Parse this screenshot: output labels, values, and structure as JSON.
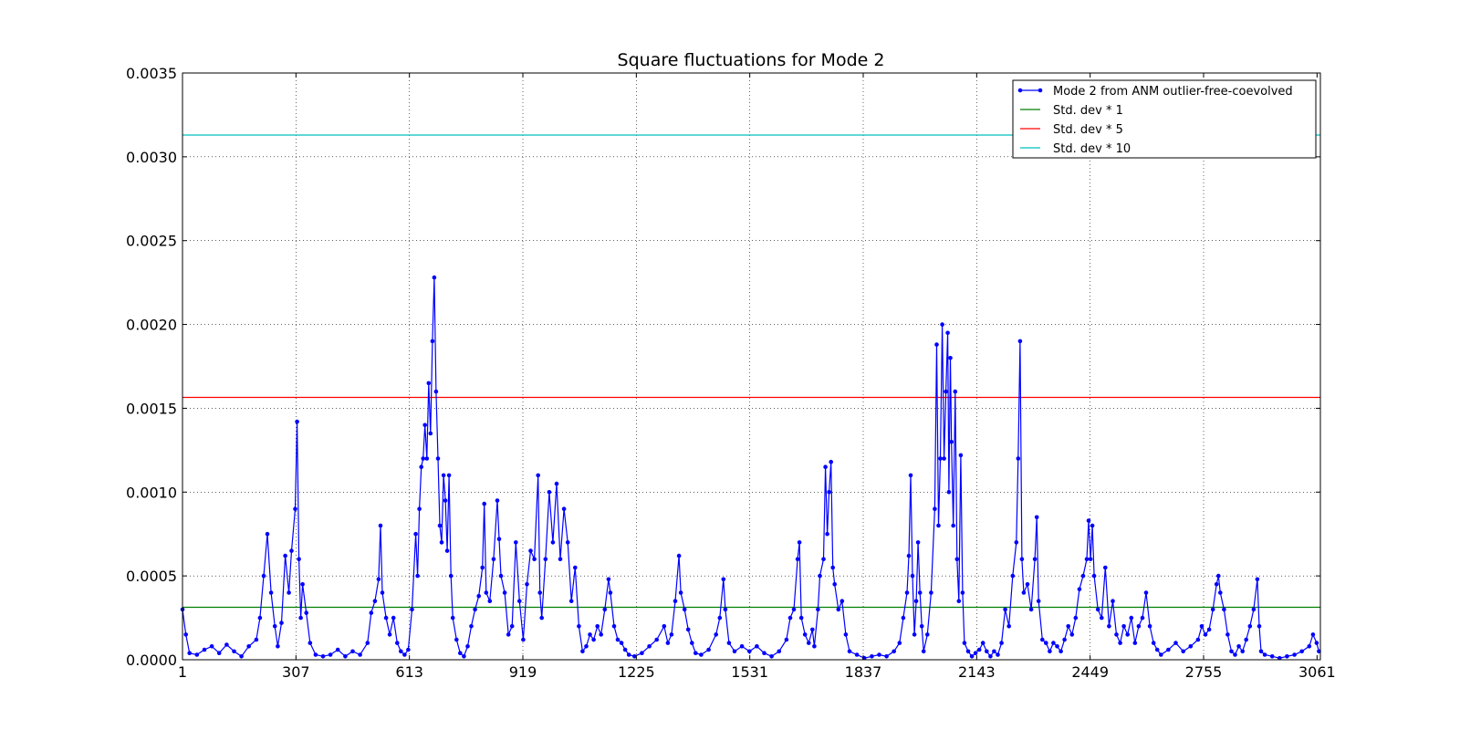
{
  "chart_data": {
    "type": "line",
    "title": "Square fluctuations for Mode 2",
    "xlabel": "",
    "ylabel": "",
    "xlim": [
      1,
      3070
    ],
    "ylim": [
      0,
      0.0035
    ],
    "x_ticks": [
      "1",
      "307",
      "613",
      "919",
      "1225",
      "1531",
      "1837",
      "2143",
      "2449",
      "2755",
      "3061"
    ],
    "y_ticks": [
      "0.0000",
      "0.0005",
      "0.0010",
      "0.0015",
      "0.0020",
      "0.0025",
      "0.0030",
      "0.0035"
    ],
    "grid": true,
    "legend_position": "top-right",
    "series": [
      {
        "name": "Mode 2 from ANM outlier-free-coevolved",
        "color": "#0000ff",
        "marker": "dot",
        "points": [
          [
            1,
            0.0003
          ],
          [
            10,
            0.00015
          ],
          [
            20,
            4e-05
          ],
          [
            40,
            3e-05
          ],
          [
            60,
            6e-05
          ],
          [
            80,
            8e-05
          ],
          [
            100,
            4e-05
          ],
          [
            120,
            9e-05
          ],
          [
            140,
            5e-05
          ],
          [
            160,
            2e-05
          ],
          [
            180,
            8e-05
          ],
          [
            200,
            0.00012
          ],
          [
            210,
            0.00025
          ],
          [
            220,
            0.0005
          ],
          [
            230,
            0.00075
          ],
          [
            240,
            0.0004
          ],
          [
            250,
            0.0002
          ],
          [
            258,
            8e-05
          ],
          [
            268,
            0.00022
          ],
          [
            278,
            0.00062
          ],
          [
            288,
            0.0004
          ],
          [
            295,
            0.00065
          ],
          [
            305,
            0.0009
          ],
          [
            310,
            0.00142
          ],
          [
            315,
            0.0006
          ],
          [
            320,
            0.00025
          ],
          [
            325,
            0.00045
          ],
          [
            335,
            0.00028
          ],
          [
            345,
            0.0001
          ],
          [
            360,
            3e-05
          ],
          [
            380,
            2e-05
          ],
          [
            400,
            3e-05
          ],
          [
            420,
            6e-05
          ],
          [
            440,
            2e-05
          ],
          [
            460,
            5e-05
          ],
          [
            480,
            3e-05
          ],
          [
            500,
            0.0001
          ],
          [
            510,
            0.00028
          ],
          [
            520,
            0.00035
          ],
          [
            530,
            0.00048
          ],
          [
            535,
            0.0008
          ],
          [
            540,
            0.0004
          ],
          [
            550,
            0.00025
          ],
          [
            560,
            0.00015
          ],
          [
            570,
            0.00025
          ],
          [
            580,
            0.0001
          ],
          [
            590,
            5e-05
          ],
          [
            600,
            3e-05
          ],
          [
            610,
            6e-05
          ],
          [
            620,
            0.0003
          ],
          [
            630,
            0.00075
          ],
          [
            635,
            0.0005
          ],
          [
            640,
            0.0009
          ],
          [
            645,
            0.00115
          ],
          [
            650,
            0.0012
          ],
          [
            655,
            0.0014
          ],
          [
            660,
            0.0012
          ],
          [
            665,
            0.00165
          ],
          [
            670,
            0.00135
          ],
          [
            675,
            0.0019
          ],
          [
            680,
            0.00228
          ],
          [
            685,
            0.0016
          ],
          [
            690,
            0.0012
          ],
          [
            695,
            0.0008
          ],
          [
            700,
            0.0007
          ],
          [
            705,
            0.0011
          ],
          [
            710,
            0.00095
          ],
          [
            715,
            0.00065
          ],
          [
            720,
            0.0011
          ],
          [
            725,
            0.0005
          ],
          [
            730,
            0.00025
          ],
          [
            740,
            0.00012
          ],
          [
            750,
            4e-05
          ],
          [
            760,
            2e-05
          ],
          [
            770,
            8e-05
          ],
          [
            780,
            0.0002
          ],
          [
            790,
            0.0003
          ],
          [
            800,
            0.00038
          ],
          [
            810,
            0.00055
          ],
          [
            815,
            0.00093
          ],
          [
            820,
            0.0004
          ],
          [
            830,
            0.00035
          ],
          [
            840,
            0.0006
          ],
          [
            850,
            0.00095
          ],
          [
            855,
            0.00072
          ],
          [
            860,
            0.0005
          ],
          [
            870,
            0.0004
          ],
          [
            880,
            0.00015
          ],
          [
            890,
            0.0002
          ],
          [
            900,
            0.0007
          ],
          [
            910,
            0.00035
          ],
          [
            920,
            0.00012
          ],
          [
            930,
            0.00045
          ],
          [
            940,
            0.00065
          ],
          [
            950,
            0.0006
          ],
          [
            960,
            0.0011
          ],
          [
            965,
            0.0004
          ],
          [
            970,
            0.00025
          ],
          [
            980,
            0.0006
          ],
          [
            990,
            0.001
          ],
          [
            1000,
            0.0007
          ],
          [
            1010,
            0.00105
          ],
          [
            1020,
            0.0006
          ],
          [
            1030,
            0.0009
          ],
          [
            1040,
            0.0007
          ],
          [
            1050,
            0.00035
          ],
          [
            1060,
            0.00055
          ],
          [
            1070,
            0.0002
          ],
          [
            1080,
            5e-05
          ],
          [
            1090,
            8e-05
          ],
          [
            1100,
            0.00015
          ],
          [
            1110,
            0.00012
          ],
          [
            1120,
            0.0002
          ],
          [
            1130,
            0.00015
          ],
          [
            1140,
            0.0003
          ],
          [
            1150,
            0.00048
          ],
          [
            1155,
            0.0004
          ],
          [
            1165,
            0.0002
          ],
          [
            1175,
            0.00012
          ],
          [
            1185,
            0.0001
          ],
          [
            1195,
            6e-05
          ],
          [
            1205,
            3e-05
          ],
          [
            1220,
            2e-05
          ],
          [
            1240,
            4e-05
          ],
          [
            1260,
            8e-05
          ],
          [
            1280,
            0.00012
          ],
          [
            1300,
            0.0002
          ],
          [
            1310,
            0.0001
          ],
          [
            1320,
            0.00015
          ],
          [
            1330,
            0.00035
          ],
          [
            1340,
            0.00062
          ],
          [
            1345,
            0.0004
          ],
          [
            1355,
            0.0003
          ],
          [
            1365,
            0.00018
          ],
          [
            1375,
            0.0001
          ],
          [
            1385,
            4e-05
          ],
          [
            1400,
            3e-05
          ],
          [
            1420,
            6e-05
          ],
          [
            1440,
            0.00015
          ],
          [
            1450,
            0.00025
          ],
          [
            1460,
            0.00048
          ],
          [
            1465,
            0.0003
          ],
          [
            1475,
            0.0001
          ],
          [
            1490,
            5e-05
          ],
          [
            1510,
            8e-05
          ],
          [
            1530,
            5e-05
          ],
          [
            1550,
            8e-05
          ],
          [
            1570,
            4e-05
          ],
          [
            1590,
            2e-05
          ],
          [
            1610,
            5e-05
          ],
          [
            1630,
            0.00012
          ],
          [
            1640,
            0.00025
          ],
          [
            1650,
            0.0003
          ],
          [
            1660,
            0.0006
          ],
          [
            1665,
            0.0007
          ],
          [
            1670,
            0.00025
          ],
          [
            1680,
            0.00015
          ],
          [
            1690,
            0.0001
          ],
          [
            1700,
            0.00018
          ],
          [
            1705,
            8e-05
          ],
          [
            1715,
            0.0003
          ],
          [
            1720,
            0.0005
          ],
          [
            1730,
            0.0006
          ],
          [
            1735,
            0.00115
          ],
          [
            1740,
            0.00075
          ],
          [
            1745,
            0.001
          ],
          [
            1750,
            0.00118
          ],
          [
            1755,
            0.00055
          ],
          [
            1760,
            0.00045
          ],
          [
            1770,
            0.0003
          ],
          [
            1780,
            0.00035
          ],
          [
            1790,
            0.00015
          ],
          [
            1800,
            5e-05
          ],
          [
            1820,
            3e-05
          ],
          [
            1840,
            1e-05
          ],
          [
            1860,
            2e-05
          ],
          [
            1880,
            3e-05
          ],
          [
            1900,
            2e-05
          ],
          [
            1920,
            5e-05
          ],
          [
            1935,
            0.0001
          ],
          [
            1945,
            0.00025
          ],
          [
            1955,
            0.0004
          ],
          [
            1960,
            0.00062
          ],
          [
            1965,
            0.0011
          ],
          [
            1970,
            0.0005
          ],
          [
            1975,
            0.00015
          ],
          [
            1980,
            0.00035
          ],
          [
            1985,
            0.0007
          ],
          [
            1990,
            0.0004
          ],
          [
            1995,
            0.0002
          ],
          [
            2000,
            5e-05
          ],
          [
            2010,
            0.00015
          ],
          [
            2020,
            0.0004
          ],
          [
            2030,
            0.0009
          ],
          [
            2035,
            0.00188
          ],
          [
            2040,
            0.0008
          ],
          [
            2045,
            0.0012
          ],
          [
            2050,
            0.002
          ],
          [
            2055,
            0.0012
          ],
          [
            2060,
            0.0016
          ],
          [
            2065,
            0.00195
          ],
          [
            2068,
            0.001
          ],
          [
            2072,
            0.0018
          ],
          [
            2075,
            0.0013
          ],
          [
            2080,
            0.0008
          ],
          [
            2085,
            0.0016
          ],
          [
            2090,
            0.0006
          ],
          [
            2095,
            0.00035
          ],
          [
            2100,
            0.00122
          ],
          [
            2105,
            0.0004
          ],
          [
            2110,
            0.0001
          ],
          [
            2120,
            5e-05
          ],
          [
            2130,
            2e-05
          ],
          [
            2140,
            4e-05
          ],
          [
            2150,
            6e-05
          ],
          [
            2160,
            0.0001
          ],
          [
            2170,
            5e-05
          ],
          [
            2180,
            2e-05
          ],
          [
            2190,
            5e-05
          ],
          [
            2200,
            3e-05
          ],
          [
            2210,
            0.0001
          ],
          [
            2220,
            0.0003
          ],
          [
            2230,
            0.0002
          ],
          [
            2240,
            0.0005
          ],
          [
            2250,
            0.0007
          ],
          [
            2255,
            0.0012
          ],
          [
            2260,
            0.0019
          ],
          [
            2265,
            0.0006
          ],
          [
            2270,
            0.0004
          ],
          [
            2280,
            0.00045
          ],
          [
            2290,
            0.0003
          ],
          [
            2300,
            0.0006
          ],
          [
            2305,
            0.00085
          ],
          [
            2310,
            0.00035
          ],
          [
            2320,
            0.00012
          ],
          [
            2330,
            0.0001
          ],
          [
            2340,
            5e-05
          ],
          [
            2350,
            0.0001
          ],
          [
            2360,
            8e-05
          ],
          [
            2370,
            5e-05
          ],
          [
            2380,
            0.00012
          ],
          [
            2390,
            0.0002
          ],
          [
            2400,
            0.00015
          ],
          [
            2410,
            0.00025
          ],
          [
            2420,
            0.00042
          ],
          [
            2430,
            0.0005
          ],
          [
            2440,
            0.0006
          ],
          [
            2445,
            0.00083
          ],
          [
            2450,
            0.0006
          ],
          [
            2455,
            0.0008
          ],
          [
            2460,
            0.0005
          ],
          [
            2470,
            0.0003
          ],
          [
            2480,
            0.00025
          ],
          [
            2490,
            0.00055
          ],
          [
            2500,
            0.0002
          ],
          [
            2510,
            0.00035
          ],
          [
            2520,
            0.00015
          ],
          [
            2530,
            0.0001
          ],
          [
            2540,
            0.0002
          ],
          [
            2550,
            0.00015
          ],
          [
            2560,
            0.00025
          ],
          [
            2570,
            0.0001
          ],
          [
            2580,
            0.0002
          ],
          [
            2590,
            0.00025
          ],
          [
            2600,
            0.0004
          ],
          [
            2610,
            0.0002
          ],
          [
            2620,
            0.0001
          ],
          [
            2630,
            6e-05
          ],
          [
            2640,
            3e-05
          ],
          [
            2660,
            6e-05
          ],
          [
            2680,
            0.0001
          ],
          [
            2700,
            5e-05
          ],
          [
            2720,
            8e-05
          ],
          [
            2740,
            0.00012
          ],
          [
            2750,
            0.0002
          ],
          [
            2760,
            0.00015
          ],
          [
            2770,
            0.00018
          ],
          [
            2780,
            0.0003
          ],
          [
            2790,
            0.00045
          ],
          [
            2795,
            0.0005
          ],
          [
            2800,
            0.0004
          ],
          [
            2810,
            0.0003
          ],
          [
            2820,
            0.00015
          ],
          [
            2830,
            5e-05
          ],
          [
            2840,
            3e-05
          ],
          [
            2850,
            8e-05
          ],
          [
            2860,
            5e-05
          ],
          [
            2870,
            0.00012
          ],
          [
            2880,
            0.0002
          ],
          [
            2890,
            0.0003
          ],
          [
            2900,
            0.00048
          ],
          [
            2905,
            0.0002
          ],
          [
            2910,
            5e-05
          ],
          [
            2920,
            3e-05
          ],
          [
            2940,
            2e-05
          ],
          [
            2960,
            1e-05
          ],
          [
            2980,
            2e-05
          ],
          [
            3000,
            3e-05
          ],
          [
            3020,
            5e-05
          ],
          [
            3040,
            8e-05
          ],
          [
            3050,
            0.00015
          ],
          [
            3060,
            0.0001
          ],
          [
            3066,
            5e-05
          ]
        ]
      },
      {
        "name": "Std. dev * 1",
        "color": "#008000",
        "value": 0.000313
      },
      {
        "name": "Std. dev * 5",
        "color": "#ff0000",
        "value": 0.001565
      },
      {
        "name": "Std. dev * 10",
        "color": "#00bfbf",
        "value": 0.00313
      }
    ]
  }
}
